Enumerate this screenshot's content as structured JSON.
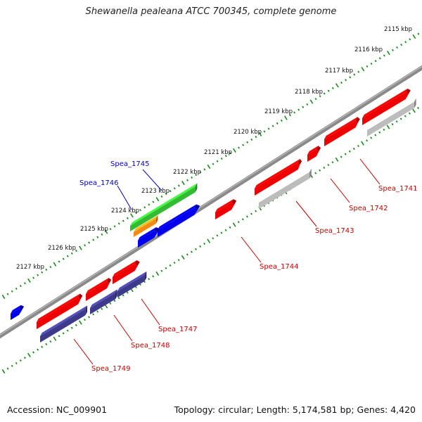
{
  "title": "Shewanella pealeana ATCC 700345, complete genome",
  "footer": {
    "accession": "Accession: NC_009901",
    "summary": "Topology: circular; Length: 5,174,581 bp; Genes: 4,420"
  },
  "ruler": {
    "labels": [
      "2115 kbp",
      "2116 kbp",
      "2117 kbp",
      "2118 kbp",
      "2119 kbp",
      "2120 kbp",
      "2121 kbp",
      "2122 kbp",
      "2123 kbp",
      "2124 kbp",
      "2125 kbp",
      "2126 kbp",
      "2127 kbp"
    ]
  },
  "colors": {
    "backbone": "#8a8a8a",
    "ticks": "#1a8a1a",
    "red": "#ee0000",
    "grey": "#bcbcbc",
    "navy": "#3d3a8c",
    "blue": "#0000ee",
    "green": "#33bb33",
    "orange": "#f08c14",
    "label_forward": "#0000cc",
    "label_reverse": "#cc0000"
  },
  "genes": [
    {
      "name": "Spea_1741",
      "strand": "reverse",
      "labeled": true
    },
    {
      "name": "Spea_1742",
      "strand": "reverse",
      "labeled": true
    },
    {
      "name": "Spea_1743",
      "strand": "reverse",
      "labeled": true
    },
    {
      "name": "Spea_1744",
      "strand": "reverse",
      "labeled": true
    },
    {
      "name": "Spea_1745",
      "strand": "forward",
      "labeled": true
    },
    {
      "name": "Spea_1746",
      "strand": "forward",
      "labeled": true
    },
    {
      "name": "Spea_1747",
      "strand": "reverse",
      "labeled": true
    },
    {
      "name": "Spea_1748",
      "strand": "reverse",
      "labeled": true
    },
    {
      "name": "Spea_1749",
      "strand": "reverse",
      "labeled": true
    }
  ]
}
